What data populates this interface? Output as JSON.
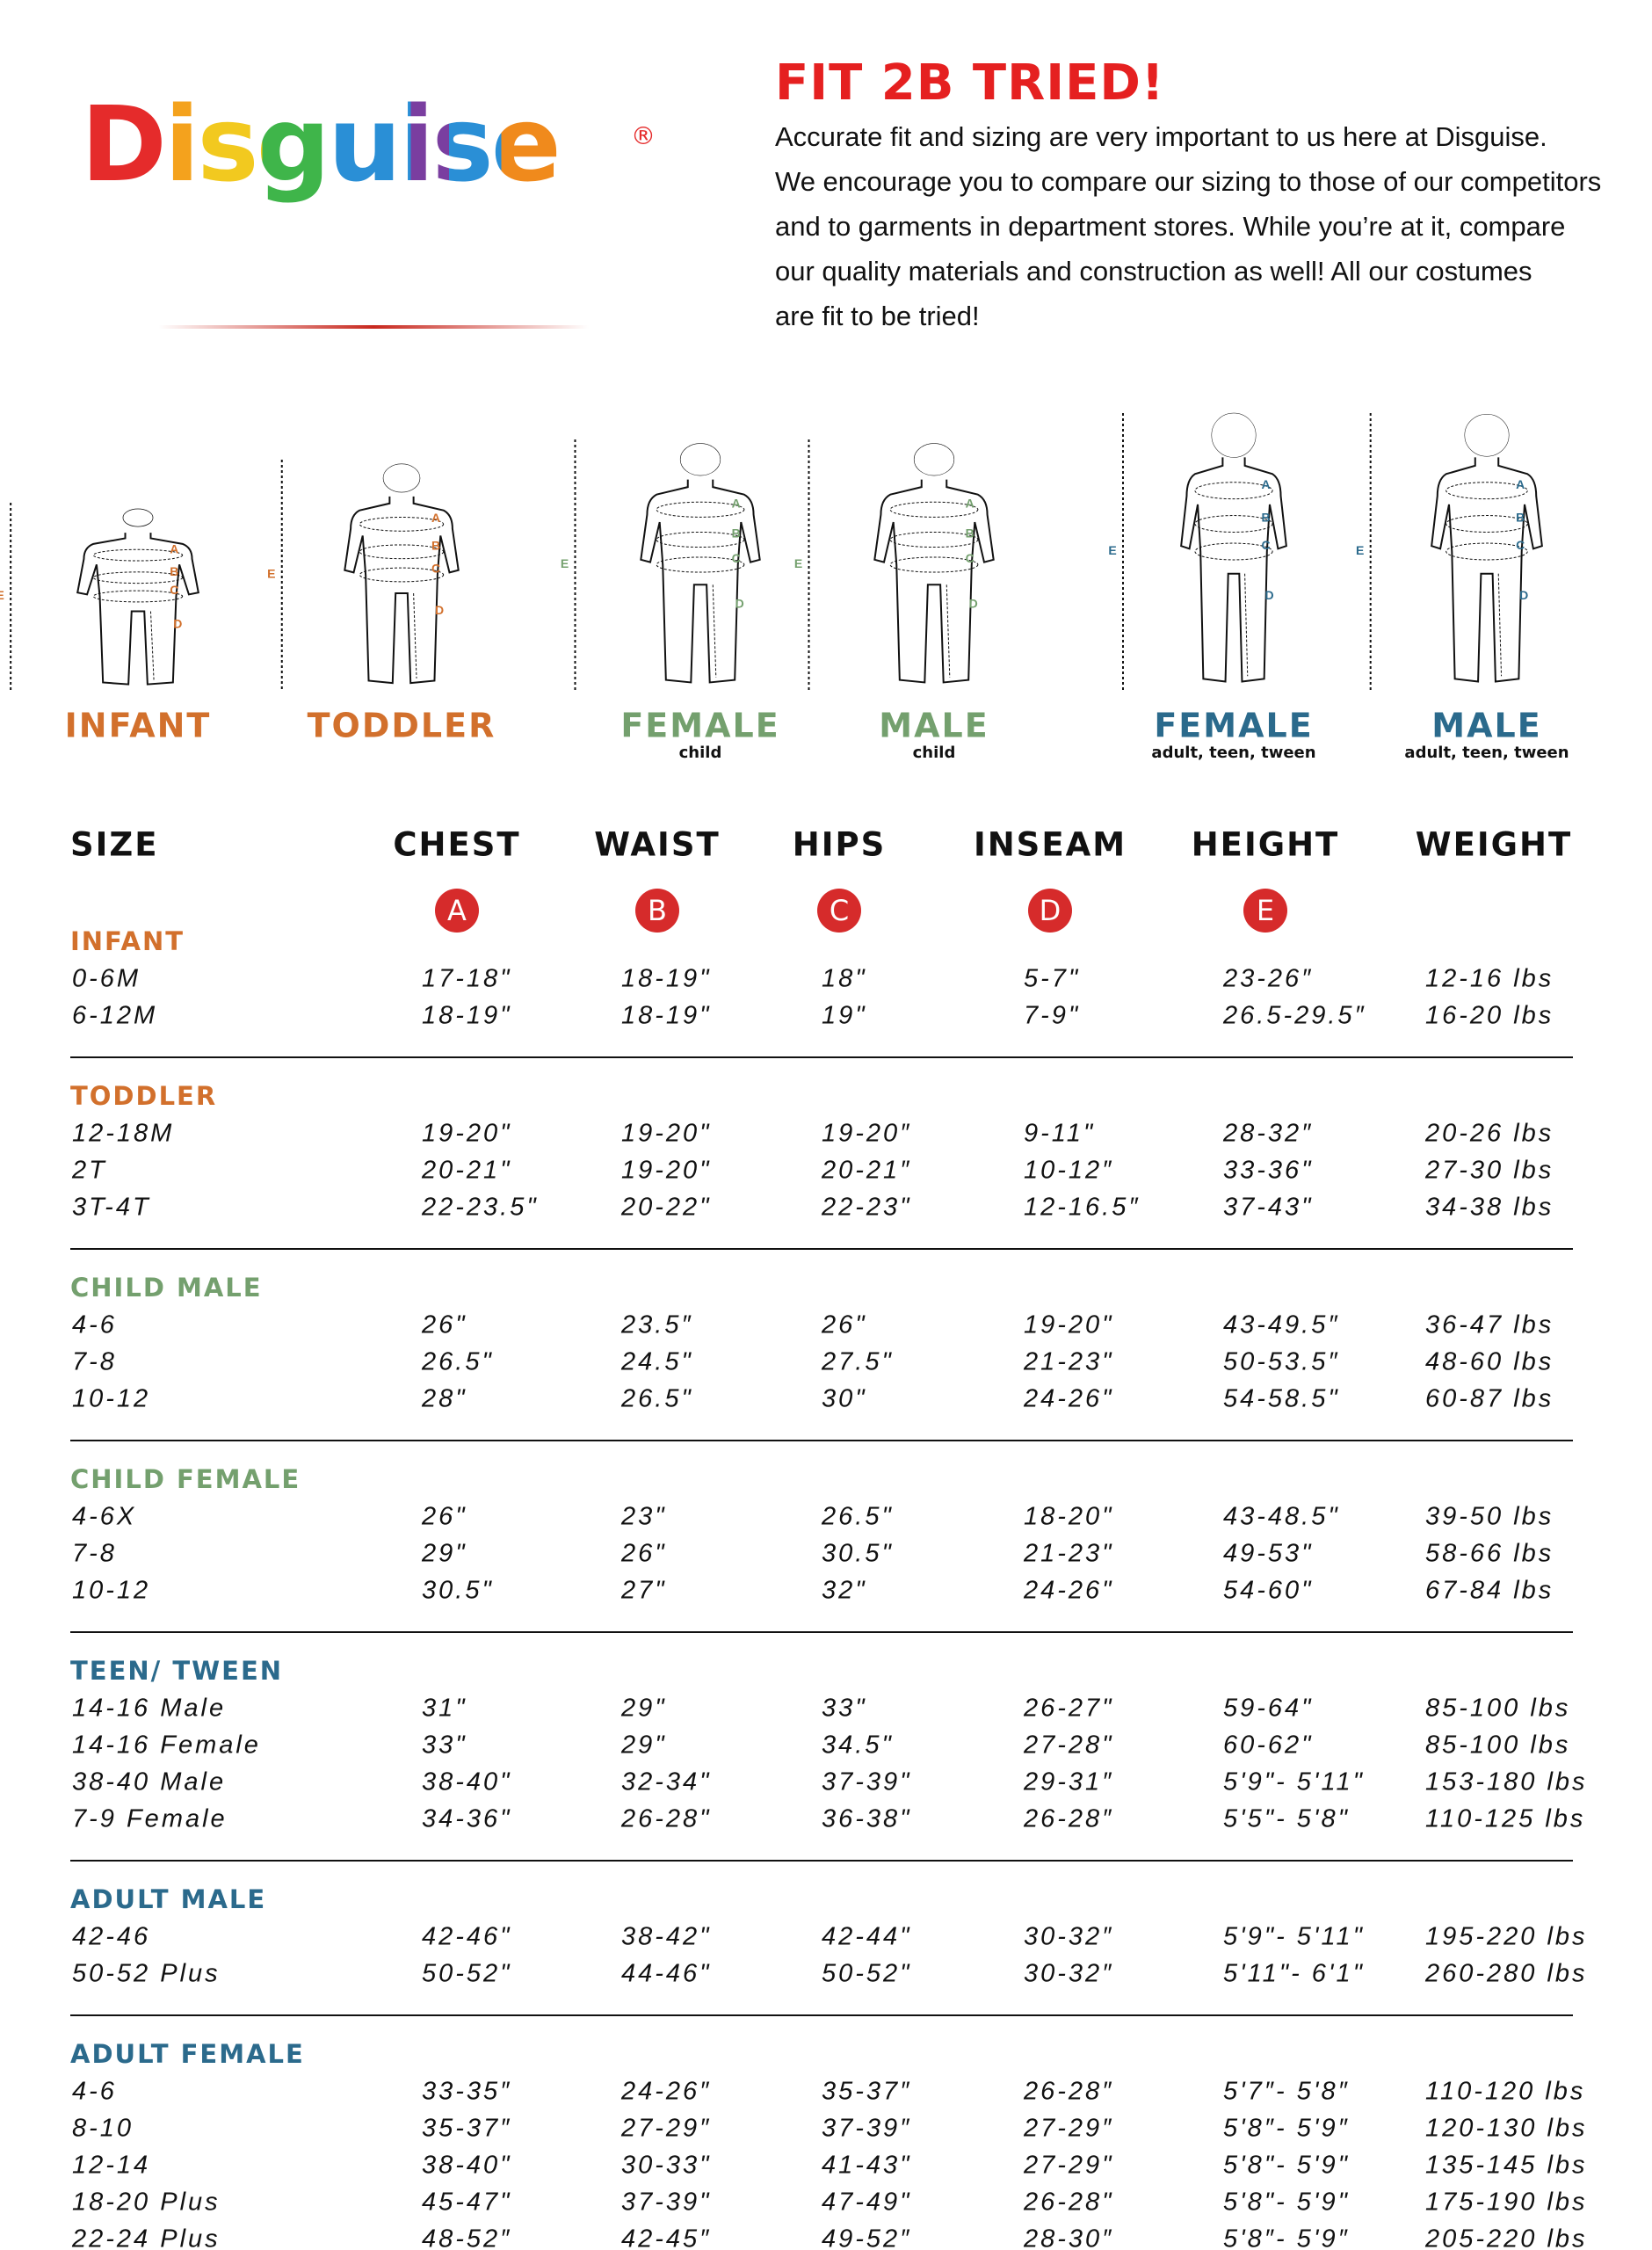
{
  "logo": {
    "text": "Disguise",
    "mark": "®"
  },
  "headline": "FIT 2B TRIED!",
  "intro": [
    "Accurate fit and sizing are very important to us here at Disguise.",
    "We encourage you to compare our sizing to those of our competitors",
    "and to garments in department stores. While you’re at it, compare",
    "our quality materials and construction as well! All our costumes",
    "are fit to be tried!"
  ],
  "figure_letters": [
    "A",
    "B",
    "C",
    "D",
    "E"
  ],
  "figures": [
    {
      "label": "INFANT",
      "color": "#d2702c"
    },
    {
      "label": "TODDLER",
      "color": "#d2702c"
    },
    {
      "label": "FEMALE",
      "sublabel": "child",
      "color": "#74a06e"
    },
    {
      "label": "MALE",
      "sublabel": "child",
      "color": "#74a06e"
    },
    {
      "label": "FEMALE",
      "sublabel": "adult, teen, tween",
      "color": "#2b6a8c"
    },
    {
      "label": "MALE",
      "sublabel": "adult, teen, tween",
      "color": "#2b6a8c"
    }
  ],
  "table": {
    "columns": [
      "SIZE",
      "CHEST",
      "WAIST",
      "HIPS",
      "INSEAM",
      "HEIGHT",
      "WEIGHT"
    ],
    "groups": [
      {
        "name": "INFANT",
        "color": "#d2702c",
        "rows": [
          [
            "0-6M",
            "17-18\"",
            "18-19\"",
            "18\"",
            "5-7\"",
            "23-26″",
            "12-16 lbs"
          ],
          [
            "6-12M",
            "18-19\"",
            "18-19\"",
            "19\"",
            "7-9\"",
            "26.5-29.5″",
            "16-20 lbs"
          ]
        ]
      },
      {
        "name": "TODDLER",
        "color": "#d2702c",
        "rows": [
          [
            "12-18M",
            "19-20\"",
            "19-20\"",
            "19-20″",
            "9-11\"",
            "28-32″",
            "20-26 lbs"
          ],
          [
            "2T",
            "20-21\"",
            "19-20\"",
            "20-21″",
            "10-12″",
            "33-36\"",
            "27-30 lbs"
          ],
          [
            "3T-4T",
            "22-23.5\"",
            "20-22\"",
            "22-23\"",
            "12-16.5″",
            "37-43\"",
            "34-38 lbs"
          ]
        ]
      },
      {
        "name": "CHILD MALE",
        "color": "#74a06e",
        "rows": [
          [
            "4-6",
            "26\"",
            "23.5″",
            "26\"",
            "19-20\"",
            "43-49.5″",
            "36-47 lbs"
          ],
          [
            "7-8",
            "26.5\"",
            "24.5\"",
            "27.5\"",
            "21-23\"",
            "50-53.5″",
            "48-60 lbs"
          ],
          [
            "10-12",
            "28\"",
            "26.5\"",
            "30\"",
            "24-26\"",
            "54-58.5\"",
            "60-87 lbs"
          ]
        ]
      },
      {
        "name": "CHILD FEMALE",
        "color": "#74a06e",
        "rows": [
          [
            "4-6X",
            "26\"",
            "23\"",
            "26.5\"",
            "18-20\"",
            "43-48.5\"",
            "39-50 lbs"
          ],
          [
            "7-8",
            "29\"",
            "26\"",
            "30.5\"",
            "21-23\"",
            "49-53\"",
            "58-66 lbs"
          ],
          [
            "10-12",
            "30.5\"",
            "27\"",
            "32\"",
            "24-26\"",
            "54-60\"",
            "67-84 lbs"
          ]
        ]
      },
      {
        "name": "TEEN/ TWEEN",
        "color": "#2b6a8c",
        "rows": [
          [
            "14-16 Male",
            "31\"",
            "29\"",
            "33\"",
            "26-27\"",
            "59-64\"",
            "85-100 lbs"
          ],
          [
            "14-16 Female",
            "33\"",
            "29\"",
            "34.5\"",
            "27-28\"",
            "60-62\"",
            "85-100 lbs"
          ],
          [
            "38-40 Male",
            "38-40\"",
            "32-34\"",
            "37-39\"",
            "29-31″",
            "5'9\"- 5'11\"",
            "153-180 lbs"
          ],
          [
            "7-9 Female",
            "34-36\"",
            "26-28\"",
            "36-38\"",
            "26-28″",
            "5'5\"- 5'8\"",
            "110-125 lbs"
          ]
        ]
      },
      {
        "name": "ADULT MALE",
        "color": "#2b6a8c",
        "rows": [
          [
            "42-46",
            "42-46\"",
            "38-42\"",
            "42-44\"",
            "30-32″",
            "5'9\"- 5'11\"",
            "195-220 lbs"
          ],
          [
            "50-52 Plus",
            "50-52\"",
            "44-46\"",
            "50-52\"",
            "30-32″",
            "5'11\"- 6'1\"",
            "260-280 lbs"
          ]
        ]
      },
      {
        "name": "ADULT FEMALE",
        "color": "#2b6a8c",
        "rows": [
          [
            "4-6",
            "33-35″",
            "24-26″",
            "35-37″",
            "26-28″",
            "5'7″- 5'8″",
            "110-120 lbs"
          ],
          [
            "8-10",
            "35-37″",
            "27-29″",
            "37-39″",
            "27-29″",
            "5'8″- 5'9″",
            "120-130 lbs"
          ],
          [
            "12-14",
            "38-40\"",
            "30-33\"",
            "41-43\"",
            "27-29\"",
            "5'8\"- 5'9\"",
            "135-145 lbs"
          ],
          [
            "18-20 Plus",
            "45-47\"",
            "37-39\"",
            "47-49\"",
            "26-28\"",
            "5'8\"- 5'9\"",
            "175-190 lbs"
          ],
          [
            "22-24 Plus",
            "48-52″",
            "42-45″",
            "49-52″",
            "28-30″",
            "5'8″- 5'9″",
            "205-220 lbs"
          ]
        ]
      }
    ]
  }
}
